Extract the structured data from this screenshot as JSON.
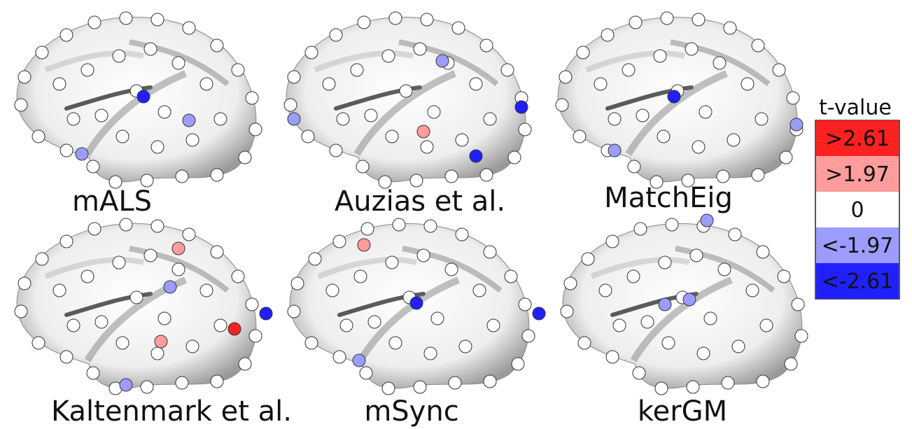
{
  "panels": [
    {
      "label": "mALS"
    },
    {
      "label": "Auzias et al."
    },
    {
      "label": "MatchEig"
    },
    {
      "label": "Kaltenmark et al."
    },
    {
      "label": "mSync"
    },
    {
      "label": "kerGM"
    }
  ],
  "legend": {
    "title": "t-value",
    "entries": [
      {
        "label": ">2.61",
        "color": "#ff2020"
      },
      {
        "label": ">1.97",
        "color": "#ff9c9c"
      },
      {
        "label": "0",
        "color": "#ffffff"
      },
      {
        "label": "<-1.97",
        "color": "#9c9cff"
      },
      {
        "label": "<-2.61",
        "color": "#2020ff"
      }
    ]
  }
}
